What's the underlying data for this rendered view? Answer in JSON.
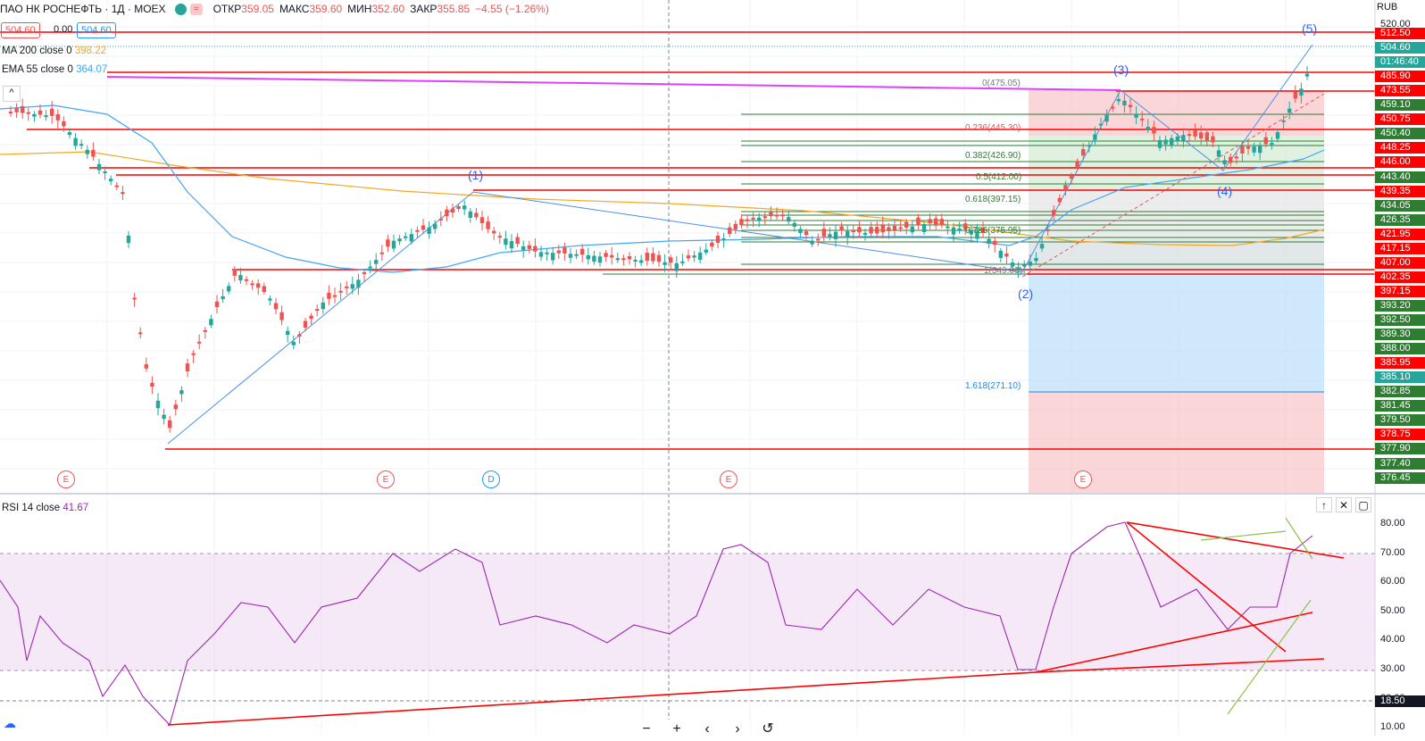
{
  "header": {
    "symbol": "ПАО НК РОСНЕФТЬ · 1Д · MOEX",
    "open_label": "ОТКР",
    "open_value": "359.05",
    "high_label": "МАКС",
    "high_value": "359.60",
    "low_label": "МИН",
    "low_value": "352.60",
    "close_label": "ЗАКР",
    "close_value": "355.85",
    "change_value": "−4.55 (−1.26%)",
    "wave_icon": "≈",
    "bid": "504.60",
    "spread": "0.00",
    "ask": "504.60"
  },
  "indicators": {
    "ma_name": "MA 200 close 0",
    "ma_value": "398.22",
    "ema_name": "EMA 55 close 0",
    "ema_value": "364.07",
    "rsi_name": "RSI 14 close",
    "rsi_value": "41.67"
  },
  "currency": "RUB",
  "colors": {
    "up": "#26a69a",
    "down": "#ef5350",
    "ma": "#f6a623",
    "ema": "#42a5f5",
    "rsi": "#9c27b0",
    "red_line": "#ff0000",
    "magenta": "#e040fb",
    "fib_green": "#2e7d32",
    "fib_blue": "#1e88e5"
  },
  "price_axis": {
    "top_label": "520.00",
    "labels": [
      {
        "v": "512.50",
        "c": "#ff0000"
      },
      {
        "v": "504.60",
        "c": "#26a69a"
      },
      {
        "v": "01:46:40",
        "c": "#26a69a"
      },
      {
        "v": "485.90",
        "c": "#ff0000"
      },
      {
        "v": "473.55",
        "c": "#ff0000"
      },
      {
        "v": "459.10",
        "c": "#2e7d32"
      },
      {
        "v": "450.75",
        "c": "#ff0000"
      },
      {
        "v": "450.40",
        "c": "#2e7d32"
      },
      {
        "v": "448.25",
        "c": "#ff0000"
      },
      {
        "v": "446.00",
        "c": "#ff0000"
      },
      {
        "v": "443.40",
        "c": "#2e7d32"
      },
      {
        "v": "439.35",
        "c": "#ff0000"
      },
      {
        "v": "434.05",
        "c": "#2e7d32"
      },
      {
        "v": "426.35",
        "c": "#2e7d32"
      },
      {
        "v": "421.95",
        "c": "#ff0000"
      },
      {
        "v": "417.15",
        "c": "#ff0000"
      },
      {
        "v": "407.00",
        "c": "#ff0000"
      },
      {
        "v": "402.35",
        "c": "#ff0000"
      },
      {
        "v": "397.15",
        "c": "#ff0000"
      },
      {
        "v": "393.20",
        "c": "#2e7d32"
      },
      {
        "v": "392.50",
        "c": "#2e7d32"
      },
      {
        "v": "389.30",
        "c": "#2e7d32"
      },
      {
        "v": "388.00",
        "c": "#2e7d32"
      },
      {
        "v": "385.95",
        "c": "#ff0000"
      },
      {
        "v": "385.10",
        "c": "#26a69a"
      },
      {
        "v": "382.85",
        "c": "#2e7d32"
      },
      {
        "v": "381.45",
        "c": "#2e7d32"
      },
      {
        "v": "379.50",
        "c": "#2e7d32"
      },
      {
        "v": "378.75",
        "c": "#ff0000"
      },
      {
        "v": "377.90",
        "c": "#2e7d32"
      },
      {
        "v": "377.40",
        "c": "#2e7d32"
      },
      {
        "v": "376.45",
        "c": "#2e7d32"
      }
    ]
  },
  "rsi_axis": {
    "ticks": [
      "80.00",
      "70.00",
      "60.00",
      "50.00",
      "40.00",
      "30.00",
      "20.00",
      "10.00"
    ],
    "crosshair": "18.50"
  },
  "waves": [
    "(1)",
    "(2)",
    "(3)",
    "(4)",
    "(5)"
  ],
  "fib_levels": [
    {
      "label": "0(475.05)",
      "c": "#787b86"
    },
    {
      "label": "0.236(445.30)",
      "c": "#ef5350"
    },
    {
      "label": "0.382(426.90)",
      "c": "#2e7d32"
    },
    {
      "label": "0.5(412.00)",
      "c": "#2e7d32"
    },
    {
      "label": "0.618(397.15)",
      "c": "#2e7d32"
    },
    {
      "label": "0.786(375.95)",
      "c": "#2e7d32"
    },
    {
      "label": "1(349.00)",
      "c": "#787b86"
    },
    {
      "label": "1.618(271.10)",
      "c": "#1e88e5"
    }
  ],
  "events": [
    "E",
    "E",
    "D",
    "E",
    "E"
  ],
  "toolbar": {
    "zoom_out": "−",
    "zoom_in": "+",
    "back": "‹",
    "forward": "›",
    "reset": "↺"
  },
  "rsi_buttons": [
    "↑",
    "✕",
    "▢"
  ],
  "pane_collapse": "^"
}
